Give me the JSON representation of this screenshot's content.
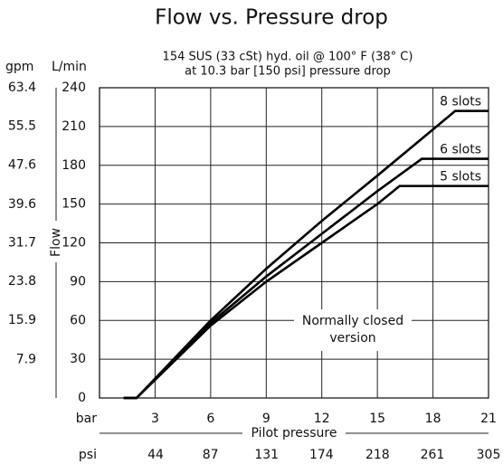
{
  "chart_data": {
    "type": "line",
    "title": "Flow vs. Pressure drop",
    "subtitle": [
      "154 SUS (33 cSt) hyd. oil @ 100° F (38° C)",
      "at 10.3 bar [150 psi] pressure drop"
    ],
    "y_unit": "L/min",
    "y2_unit": "gpm",
    "x_unit": "bar",
    "x2_unit": "psi",
    "ylabel": "Flow",
    "xlabel": "Pilot pressure",
    "annotation": [
      "Normally closed",
      "version"
    ],
    "xlim": [
      0,
      21
    ],
    "xticks": [
      3,
      6,
      9,
      12,
      15,
      18,
      21
    ],
    "x2lim": [
      0,
      305
    ],
    "x2ticks": [
      44,
      87,
      131,
      174,
      218,
      261,
      305
    ],
    "ylim": [
      0,
      240
    ],
    "yticks": [
      0,
      30,
      60,
      90,
      120,
      150,
      180,
      210,
      240
    ],
    "y2lim": [
      0,
      63.4
    ],
    "y2ticks": [
      7.9,
      15.9,
      23.8,
      31.7,
      39.6,
      47.6,
      55.5,
      63.4
    ],
    "grid": true,
    "series": [
      {
        "name": "8 slots",
        "color": "#000000",
        "x": [
          1.3,
          2,
          6,
          9,
          12,
          15,
          19.2,
          21
        ],
        "values": [
          0,
          0,
          60,
          100,
          137,
          172,
          222,
          222
        ]
      },
      {
        "name": "6 slots",
        "color": "#000000",
        "x": [
          1.3,
          2,
          6,
          9,
          12,
          15,
          17.4,
          21
        ],
        "values": [
          0,
          0,
          58,
          94,
          127,
          160,
          185,
          185
        ]
      },
      {
        "name": "5 slots",
        "color": "#000000",
        "x": [
          1.3,
          2,
          6,
          9,
          12,
          15,
          16.2,
          21
        ],
        "values": [
          0,
          0,
          56,
          90,
          120,
          150,
          164,
          164
        ]
      }
    ]
  }
}
